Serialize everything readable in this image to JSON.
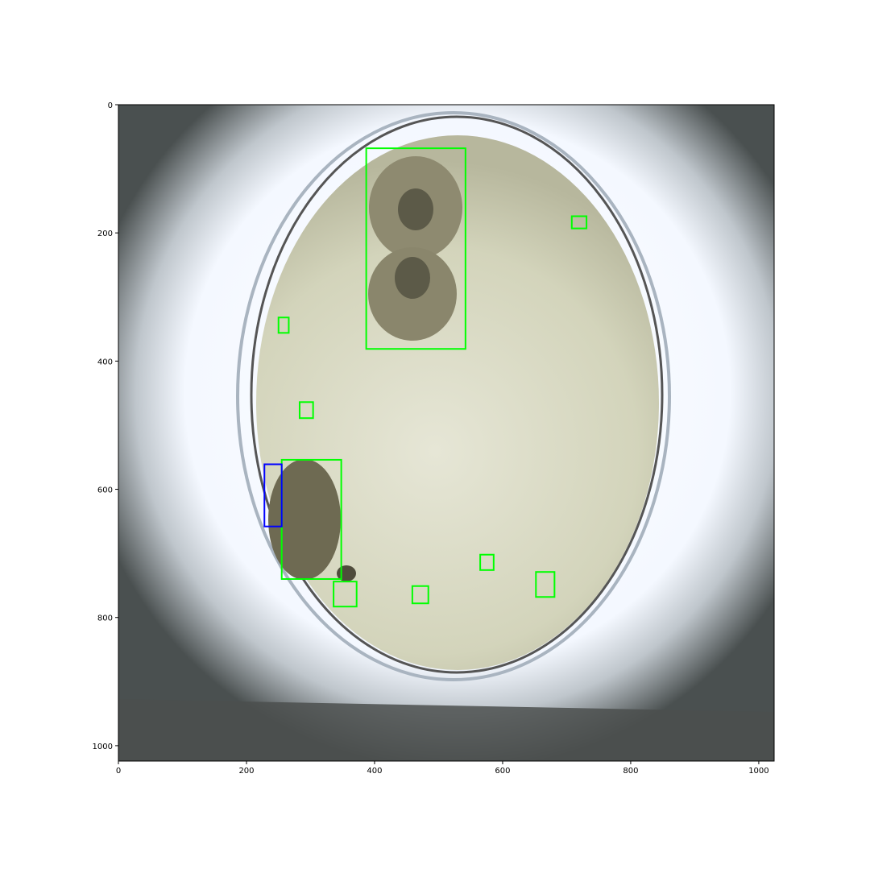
{
  "chart_data": {
    "type": "detection",
    "xlim": [
      0,
      1024
    ],
    "ylim": [
      1024,
      0
    ],
    "xticks": [
      0,
      200,
      400,
      600,
      800,
      1000
    ],
    "yticks": [
      0,
      200,
      400,
      600,
      800,
      1000
    ],
    "boxes": [
      {
        "x": [
          387,
          542
        ],
        "y": [
          68,
          381
        ],
        "color": "#00ff00"
      },
      {
        "x": [
          708,
          731
        ],
        "y": [
          174,
          193
        ],
        "color": "#00ff00"
      },
      {
        "x": [
          250,
          266
        ],
        "y": [
          332,
          356
        ],
        "color": "#00ff00"
      },
      {
        "x": [
          283,
          304
        ],
        "y": [
          464,
          489
        ],
        "color": "#00ff00"
      },
      {
        "x": [
          255,
          348
        ],
        "y": [
          554,
          740
        ],
        "color": "#00ff00"
      },
      {
        "x": [
          228,
          255
        ],
        "y": [
          561,
          658
        ],
        "color": "#0000ff"
      },
      {
        "x": [
          336,
          372
        ],
        "y": [
          744,
          783
        ],
        "color": "#00ff00"
      },
      {
        "x": [
          565,
          586
        ],
        "y": [
          702,
          726
        ],
        "color": "#00ff00"
      },
      {
        "x": [
          459,
          484
        ],
        "y": [
          751,
          778
        ],
        "color": "#00ff00"
      },
      {
        "x": [
          652,
          681
        ],
        "y": [
          729,
          768
        ],
        "color": "#00ff00"
      }
    ]
  }
}
